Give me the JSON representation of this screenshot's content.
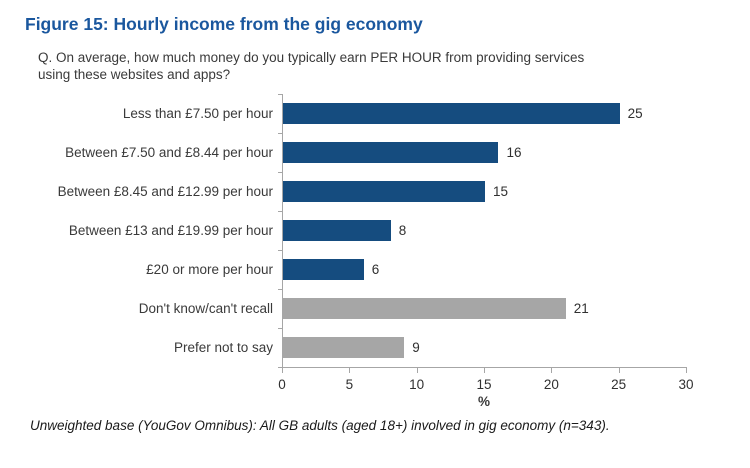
{
  "title": "Figure 15: Hourly income from the gig economy",
  "question": {
    "line1": "Q. On average, how much money do you typically earn PER HOUR from providing services",
    "line2": "using these websites and apps?"
  },
  "chart_data": {
    "type": "bar",
    "orientation": "horizontal",
    "categories": [
      "Less than £7.50 per hour",
      "Between £7.50 and £8.44 per hour",
      "Between £8.45 and £12.99 per hour",
      "Between £13 and £19.99 per hour",
      "£20 or more per hour",
      "Don't know/can't recall",
      "Prefer not to say"
    ],
    "values": [
      25,
      16,
      15,
      8,
      6,
      21,
      9
    ],
    "bar_colors": [
      "#154C7F",
      "#154C7F",
      "#154C7F",
      "#154C7F",
      "#154C7F",
      "#A6A6A6",
      "#A6A6A6"
    ],
    "value_labels": [
      "25",
      "16",
      "15",
      "8",
      "6",
      "21",
      "9"
    ],
    "xlabel": "%",
    "xlim": [
      0,
      30
    ],
    "xticks": [
      0,
      5,
      10,
      15,
      20,
      25,
      30
    ],
    "grid": false,
    "legend": "none"
  },
  "footer": "Unweighted base (YouGov Omnibus): All GB adults (aged 18+) involved in gig economy (n=343).",
  "colors": {
    "title_blue": "#1A579E",
    "bar_blue": "#154C7F",
    "bar_gray": "#A6A6A6",
    "axis_gray": "#A6A6A6"
  }
}
